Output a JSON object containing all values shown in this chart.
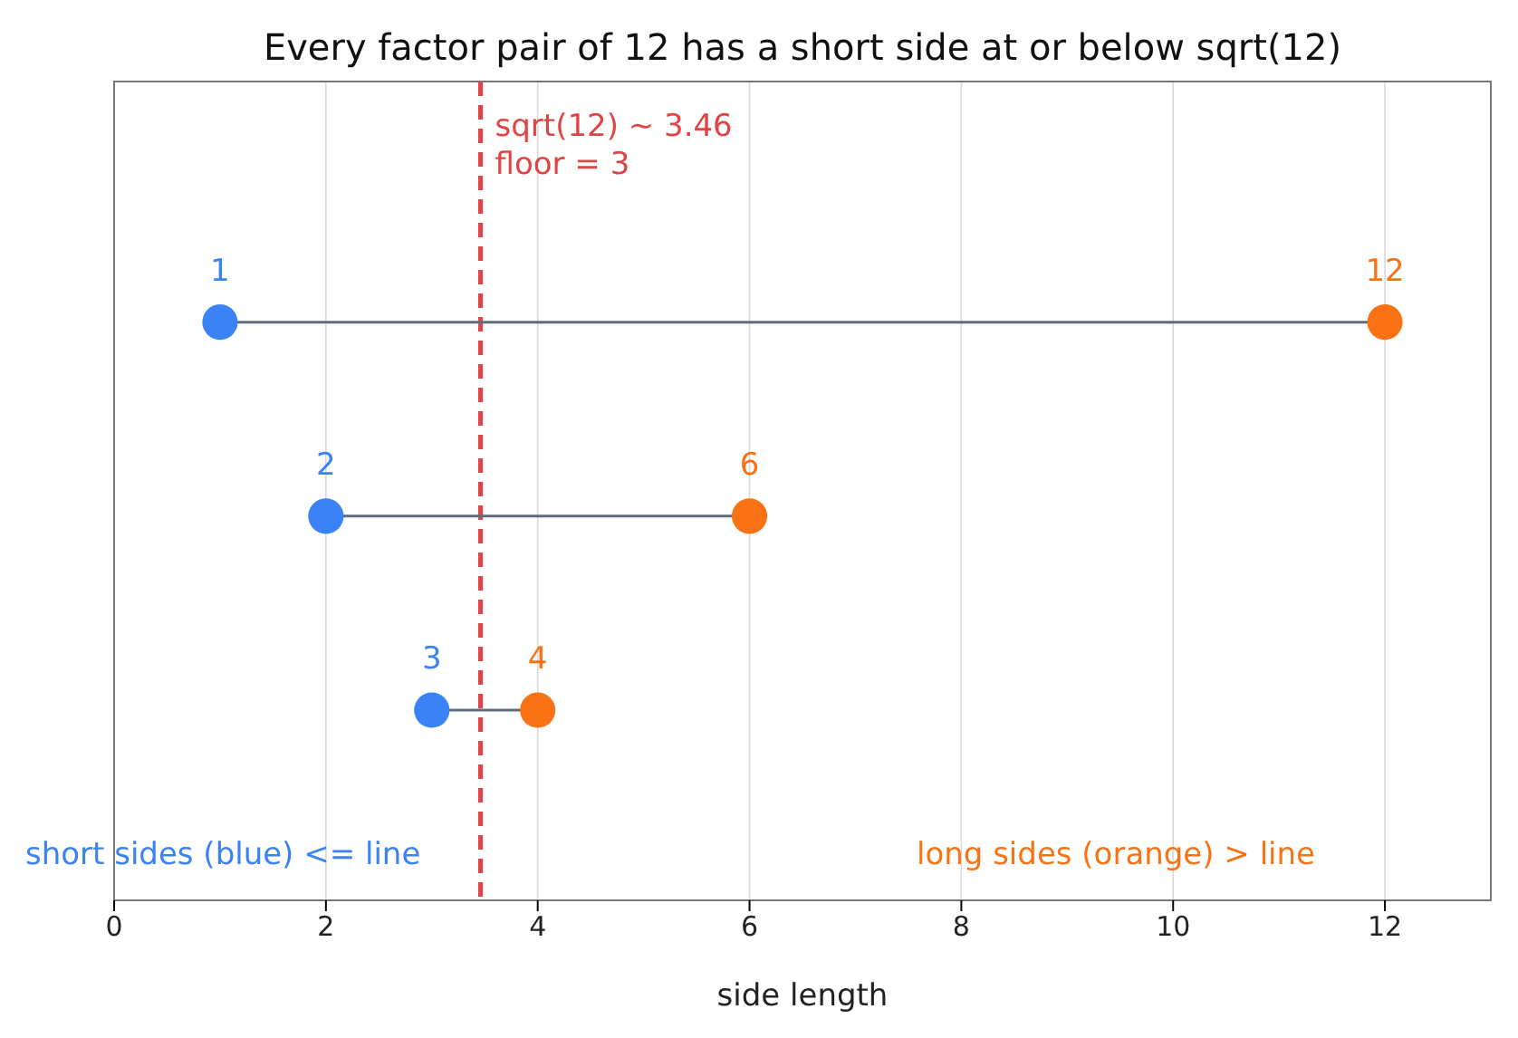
{
  "chart_data": {
    "type": "scatter",
    "title": "Every factor pair of 12 has a short side at or below sqrt(12)",
    "xlabel": "side length",
    "orientation": "horizontal",
    "categories": [
      null,
      null,
      null
    ],
    "series": [
      {
        "color": "#3b82f6",
        "values": [
          1,
          2,
          3
        ],
        "value_labels": [
          "1",
          "2",
          "3"
        ]
      },
      {
        "color": "#f97316",
        "values": [
          12,
          6,
          4
        ],
        "value_labels": [
          "12",
          "6",
          "4"
        ]
      }
    ],
    "xlim": [
      0,
      13
    ],
    "xticks": [
      0,
      2,
      4,
      6,
      8,
      10,
      12
    ],
    "grid": "x",
    "tick_labels": "x",
    "marker": "circle",
    "ref_lines": [
      {
        "axis": "x",
        "value": 3.46,
        "label": "sqrt(12) ~ 3.46\nfloor = 3",
        "color": "#e04444",
        "line_style": "dashed"
      }
    ],
    "annotations": [
      "short sides (blue) <= line",
      "long sides (orange) > line"
    ]
  }
}
